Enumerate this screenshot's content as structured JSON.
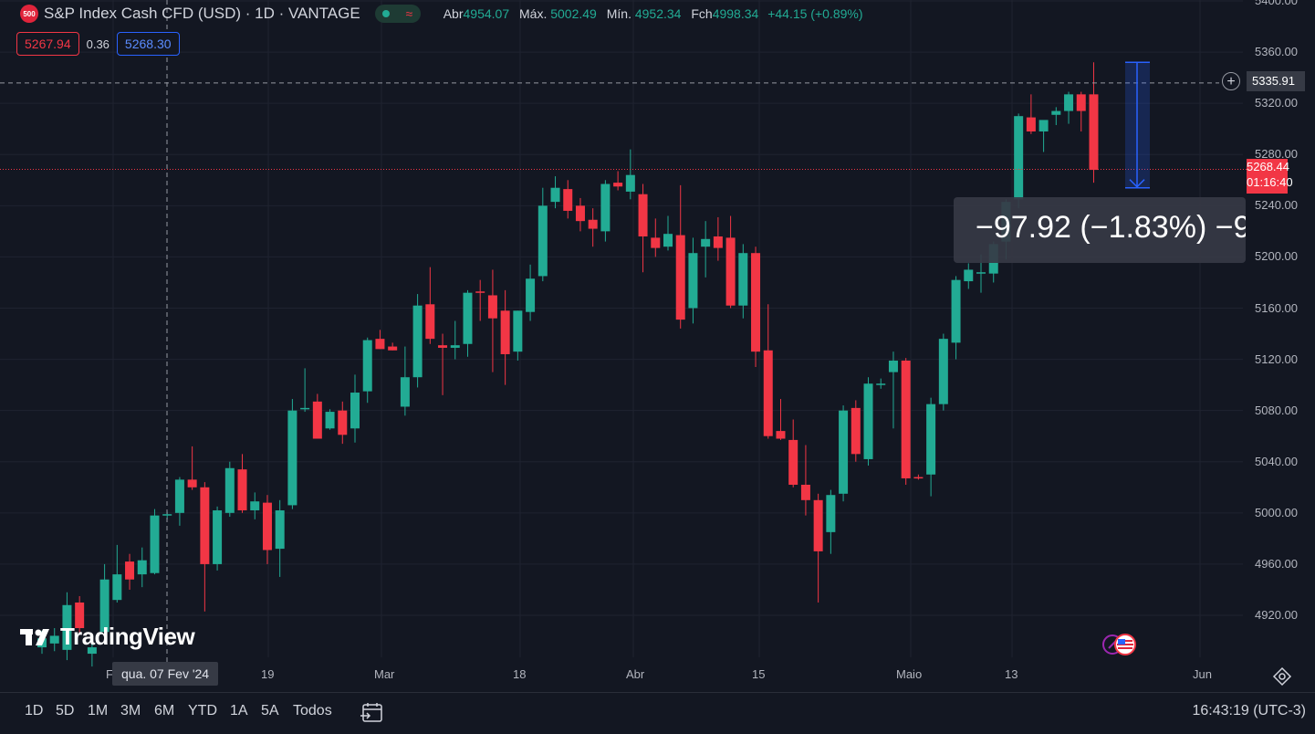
{
  "header": {
    "symbol_badge": "500",
    "title": "S&P Index Cash CFD (USD) · 1D · VANTAGE",
    "ohlc": [
      {
        "label": "Abr",
        "value": "4954.07"
      },
      {
        "label": "Máx.",
        "value": "5002.49"
      },
      {
        "label": "Mín.",
        "value": "4952.34"
      },
      {
        "label": "Fch",
        "value": "4998.34"
      }
    ],
    "change": "+44.15 (+0.89%)",
    "sell_price": "5267.94",
    "spread": "0.36",
    "buy_price": "5268.30"
  },
  "colors": {
    "up": "#22ab94",
    "down": "#f23645",
    "background": "#131722",
    "grid": "#1f2330",
    "accent": "#2962ff"
  },
  "price_axis": {
    "ticks": [
      "5400.00",
      "5360.00",
      "5320.00",
      "5280.00",
      "5240.00",
      "5200.00",
      "5160.00",
      "5120.00",
      "5080.00",
      "5040.00",
      "5000.00",
      "4960.00",
      "4920.00"
    ],
    "crosshair_price": "5335.91",
    "current_price": "5268.44",
    "countdown": "01:16:40"
  },
  "time_axis": {
    "labels": [
      "F",
      "19",
      "Mar",
      "18",
      "Abr",
      "15",
      "Maio",
      "13",
      "Jun"
    ],
    "crosshair_date": "qua. 07 Fev '24"
  },
  "measure": {
    "text": "−97.92 (−1.83%) −9"
  },
  "logo": {
    "text": "TradingView"
  },
  "timeframes": [
    "1D",
    "5D",
    "1M",
    "3M",
    "6M",
    "YTD",
    "1A",
    "5A",
    "Todos"
  ],
  "clock": "16:43:19 (UTC-3)",
  "icons": {
    "plus": "plus-icon",
    "settings": "gear-icon",
    "events": "us-flag-icon",
    "goto": "go-to-date-icon"
  },
  "chart_data": {
    "type": "candlestick",
    "ylim": [
      4880,
      5400
    ],
    "y_ticks": [
      5400,
      5360,
      5320,
      5280,
      5240,
      5200,
      5160,
      5120,
      5080,
      5040,
      5000,
      4960,
      4920
    ],
    "x_labels": [
      "F",
      "19",
      "Mar",
      "18",
      "Abr",
      "15",
      "Maio",
      "13",
      "Jun"
    ],
    "candles": [
      {
        "o": 4895,
        "h": 4908,
        "l": 4890,
        "c": 4902
      },
      {
        "o": 4898,
        "h": 4910,
        "l": 4892,
        "c": 4904
      },
      {
        "o": 4893,
        "h": 4938,
        "l": 4885,
        "c": 4928
      },
      {
        "o": 4930,
        "h": 4935,
        "l": 4905,
        "c": 4910
      },
      {
        "o": 4890,
        "h": 4898,
        "l": 4880,
        "c": 4895
      },
      {
        "o": 4907,
        "h": 4960,
        "l": 4900,
        "c": 4948
      },
      {
        "o": 4932,
        "h": 4975,
        "l": 4930,
        "c": 4952
      },
      {
        "o": 4962,
        "h": 4968,
        "l": 4940,
        "c": 4948
      },
      {
        "o": 4952,
        "h": 4973,
        "l": 4942,
        "c": 4963
      },
      {
        "o": 4953,
        "h": 5003,
        "l": 4952,
        "c": 4998
      },
      {
        "o": 4998,
        "h": 5001,
        "l": 4995,
        "c": 4999
      },
      {
        "o": 5000,
        "h": 5028,
        "l": 4990,
        "c": 5026
      },
      {
        "o": 5026,
        "h": 5052,
        "l": 5018,
        "c": 5020
      },
      {
        "o": 5020,
        "h": 5024,
        "l": 4923,
        "c": 4960
      },
      {
        "o": 4960,
        "h": 5005,
        "l": 4955,
        "c": 5002
      },
      {
        "o": 5000,
        "h": 5040,
        "l": 4997,
        "c": 5035
      },
      {
        "o": 5034,
        "h": 5046,
        "l": 5000,
        "c": 5002
      },
      {
        "o": 5002,
        "h": 5016,
        "l": 4995,
        "c": 5009
      },
      {
        "o": 5008,
        "h": 5014,
        "l": 4960,
        "c": 4971
      },
      {
        "o": 4972,
        "h": 5010,
        "l": 4950,
        "c": 5002
      },
      {
        "o": 5006,
        "h": 5089,
        "l": 5003,
        "c": 5080
      },
      {
        "o": 5082,
        "h": 5113,
        "l": 5079,
        "c": 5082
      },
      {
        "o": 5087,
        "h": 5093,
        "l": 5060,
        "c": 5058
      },
      {
        "o": 5066,
        "h": 5081,
        "l": 5065,
        "c": 5079
      },
      {
        "o": 5080,
        "h": 5087,
        "l": 5054,
        "c": 5061
      },
      {
        "o": 5066,
        "h": 5108,
        "l": 5055,
        "c": 5094
      },
      {
        "o": 5095,
        "h": 5137,
        "l": 5086,
        "c": 5135
      },
      {
        "o": 5136,
        "h": 5143,
        "l": 5128,
        "c": 5128
      },
      {
        "o": 5130,
        "h": 5133,
        "l": 5127,
        "c": 5127
      },
      {
        "o": 5083,
        "h": 5130,
        "l": 5076,
        "c": 5106
      },
      {
        "o": 5106,
        "h": 5171,
        "l": 5098,
        "c": 5162
      },
      {
        "o": 5163,
        "h": 5192,
        "l": 5132,
        "c": 5136
      },
      {
        "o": 5131,
        "h": 5140,
        "l": 5092,
        "c": 5129
      },
      {
        "o": 5129,
        "h": 5150,
        "l": 5120,
        "c": 5131
      },
      {
        "o": 5132,
        "h": 5174,
        "l": 5122,
        "c": 5172
      },
      {
        "o": 5173,
        "h": 5182,
        "l": 5150,
        "c": 5172
      },
      {
        "o": 5170,
        "h": 5190,
        "l": 5110,
        "c": 5152
      },
      {
        "o": 5158,
        "h": 5174,
        "l": 5100,
        "c": 5124
      },
      {
        "o": 5126,
        "h": 5158,
        "l": 5119,
        "c": 5158
      },
      {
        "o": 5157,
        "h": 5194,
        "l": 5150,
        "c": 5183
      },
      {
        "o": 5185,
        "h": 5254,
        "l": 5181,
        "c": 5240
      },
      {
        "o": 5243,
        "h": 5263,
        "l": 5238,
        "c": 5254
      },
      {
        "o": 5253,
        "h": 5260,
        "l": 5230,
        "c": 5236
      },
      {
        "o": 5240,
        "h": 5246,
        "l": 5220,
        "c": 5228
      },
      {
        "o": 5229,
        "h": 5238,
        "l": 5208,
        "c": 5222
      },
      {
        "o": 5220,
        "h": 5260,
        "l": 5212,
        "c": 5257
      },
      {
        "o": 5258,
        "h": 5267,
        "l": 5252,
        "c": 5255
      },
      {
        "o": 5251,
        "h": 5284,
        "l": 5245,
        "c": 5264
      },
      {
        "o": 5249,
        "h": 5257,
        "l": 5188,
        "c": 5216
      },
      {
        "o": 5215,
        "h": 5230,
        "l": 5200,
        "c": 5207
      },
      {
        "o": 5208,
        "h": 5232,
        "l": 5205,
        "c": 5218
      },
      {
        "o": 5217,
        "h": 5256,
        "l": 5144,
        "c": 5151
      },
      {
        "o": 5160,
        "h": 5215,
        "l": 5148,
        "c": 5203
      },
      {
        "o": 5208,
        "h": 5228,
        "l": 5184,
        "c": 5214
      },
      {
        "o": 5216,
        "h": 5231,
        "l": 5197,
        "c": 5207
      },
      {
        "o": 5215,
        "h": 5232,
        "l": 5160,
        "c": 5162
      },
      {
        "o": 5162,
        "h": 5210,
        "l": 5152,
        "c": 5203
      },
      {
        "o": 5203,
        "h": 5208,
        "l": 5114,
        "c": 5126
      },
      {
        "o": 5127,
        "h": 5163,
        "l": 5058,
        "c": 5060
      },
      {
        "o": 5064,
        "h": 5089,
        "l": 5057,
        "c": 5058
      },
      {
        "o": 5057,
        "h": 5073,
        "l": 5020,
        "c": 5022
      },
      {
        "o": 5022,
        "h": 5053,
        "l": 4998,
        "c": 5010
      },
      {
        "o": 5010,
        "h": 5015,
        "l": 4930,
        "c": 4970
      },
      {
        "o": 4985,
        "h": 5018,
        "l": 4968,
        "c": 5014
      },
      {
        "o": 5015,
        "h": 5084,
        "l": 5009,
        "c": 5080
      },
      {
        "o": 5082,
        "h": 5088,
        "l": 5040,
        "c": 5046
      },
      {
        "o": 5042,
        "h": 5106,
        "l": 5037,
        "c": 5101
      },
      {
        "o": 5101,
        "h": 5105,
        "l": 5097,
        "c": 5101
      },
      {
        "o": 5110,
        "h": 5126,
        "l": 5066,
        "c": 5119
      },
      {
        "o": 5119,
        "h": 5121,
        "l": 5022,
        "c": 5027
      },
      {
        "o": 5028,
        "h": 5030,
        "l": 5026,
        "c": 5027
      },
      {
        "o": 5030,
        "h": 5090,
        "l": 5013,
        "c": 5085
      },
      {
        "o": 5085,
        "h": 5140,
        "l": 5080,
        "c": 5136
      },
      {
        "o": 5133,
        "h": 5185,
        "l": 5120,
        "c": 5182
      },
      {
        "o": 5181,
        "h": 5195,
        "l": 5175,
        "c": 5190
      },
      {
        "o": 5188,
        "h": 5202,
        "l": 5172,
        "c": 5188
      },
      {
        "o": 5187,
        "h": 5212,
        "l": 5180,
        "c": 5210
      },
      {
        "o": 5212,
        "h": 5245,
        "l": 5198,
        "c": 5243
      },
      {
        "o": 5245,
        "h": 5312,
        "l": 5238,
        "c": 5310
      },
      {
        "o": 5309,
        "h": 5327,
        "l": 5296,
        "c": 5298
      },
      {
        "o": 5298,
        "h": 5306,
        "l": 5282,
        "c": 5307
      },
      {
        "o": 5311,
        "h": 5317,
        "l": 5303,
        "c": 5314
      },
      {
        "o": 5314,
        "h": 5329,
        "l": 5304,
        "c": 5327
      },
      {
        "o": 5327,
        "h": 5329,
        "l": 5298,
        "c": 5314
      },
      {
        "o": 5327,
        "h": 5352,
        "l": 5258,
        "c": 5268
      }
    ]
  }
}
